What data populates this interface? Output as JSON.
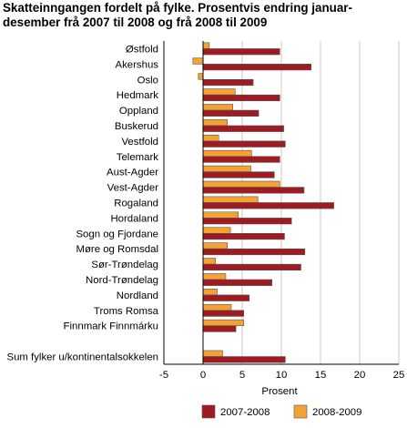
{
  "chart_data": {
    "type": "bar",
    "orientation": "horizontal",
    "title_lines": [
      "Skatteinngangen fordelt på fylke. Prosentvis endring januar-",
      "desember frå 2007 til 2008 og frå 2008 til 2009"
    ],
    "xlabel": "Prosent",
    "xlim": [
      -5,
      25
    ],
    "xticks": [
      "-5",
      "0",
      "5",
      "10",
      "15",
      "20",
      "25"
    ],
    "grid": "vertical",
    "legend_placement": "bottom",
    "categories": [
      "Østfold",
      "Akershus",
      "Oslo",
      "Hedmark",
      "Oppland",
      "Buskerud",
      "Vestfold",
      "Telemark",
      "Aust-Agder",
      "Vest-Agder",
      "Rogaland",
      "Hordaland",
      "Sogn og Fjordane",
      "Møre og Romsdal",
      "Sør-Trøndelag",
      "Nord-Trøndelag",
      "Nordland",
      "Troms Romsa",
      "Finnmark Finnmárku",
      "",
      "Sum fylker u/kontinentalsokkelen"
    ],
    "series": [
      {
        "name": "2007-2008",
        "color": "#9e1b22",
        "values": [
          9.8,
          13.8,
          6.4,
          9.8,
          7.1,
          10.3,
          10.5,
          9.8,
          9.1,
          12.9,
          16.7,
          11.3,
          10.4,
          13.0,
          12.5,
          8.8,
          5.9,
          5.2,
          4.2,
          null,
          10.5
        ]
      },
      {
        "name": "2008-2009",
        "color": "#f4a233",
        "values": [
          0.8,
          -1.3,
          -0.6,
          4.1,
          3.8,
          3.1,
          2.0,
          6.2,
          6.1,
          9.8,
          7.0,
          4.5,
          3.5,
          3.1,
          1.6,
          2.9,
          1.8,
          3.6,
          5.2,
          null,
          2.5
        ]
      }
    ]
  }
}
